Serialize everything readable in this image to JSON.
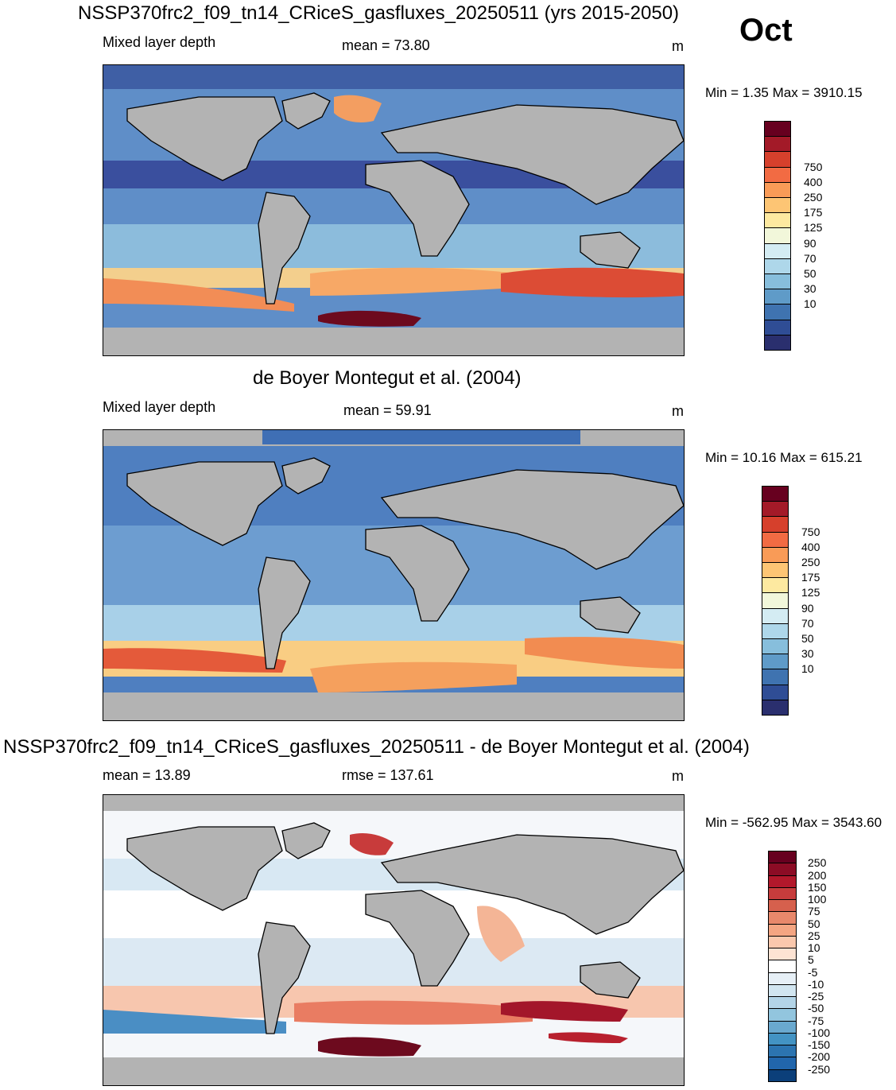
{
  "month": "Oct",
  "panels": [
    {
      "title": "NSSP370frc2_f09_tn14_CRiceS_gasfluxes_20250511 (yrs 2015-2050)",
      "left_label": "Mixed layer depth",
      "center_label": "mean =  73.80",
      "units": "m",
      "minmax": "Min =   1.35 Max = 3910.15",
      "colorbar": {
        "labels": [
          "750",
          "400",
          "250",
          "175",
          "125",
          "90",
          "70",
          "50",
          "30",
          "10"
        ],
        "colors": [
          "#67001f",
          "#a31a28",
          "#d6402c",
          "#f26b43",
          "#f99b57",
          "#fdc574",
          "#fde9a0",
          "#f2f7da",
          "#d4ecf3",
          "#aed7ea",
          "#87bedc",
          "#5f9bc8",
          "#3f73b0",
          "#2f4d95",
          "#2a2f6e"
        ]
      }
    },
    {
      "title": "de Boyer Montegut et al. (2004)",
      "left_label": "Mixed layer depth",
      "center_label": "mean =  59.91",
      "units": "m",
      "minmax": "Min =  10.16 Max = 615.21",
      "colorbar": {
        "labels": [
          "750",
          "400",
          "250",
          "175",
          "125",
          "90",
          "70",
          "50",
          "30",
          "10"
        ],
        "colors": [
          "#67001f",
          "#a31a28",
          "#d6402c",
          "#f26b43",
          "#f99b57",
          "#fdc574",
          "#fde9a0",
          "#f2f7da",
          "#d4ecf3",
          "#aed7ea",
          "#87bedc",
          "#5f9bc8",
          "#3f73b0",
          "#2f4d95",
          "#2a2f6e"
        ]
      }
    },
    {
      "title": "NSSP370frc2_f09_tn14_CRiceS_gasfluxes_20250511 - de Boyer Montegut et al. (2004)",
      "left_label": "mean =  13.89",
      "center_label": "rmse = 137.61",
      "units": "m",
      "minmax": "Min = -562.95 Max = 3543.60",
      "colorbar": {
        "labels": [
          "250",
          "200",
          "150",
          "100",
          "75",
          "50",
          "25",
          "10",
          "5",
          "-5",
          "-10",
          "-25",
          "-50",
          "-75",
          "-100",
          "-150",
          "-200",
          "-250"
        ],
        "colors": [
          "#67001f",
          "#8c0c25",
          "#b2182b",
          "#c73c3c",
          "#d6604d",
          "#e8886b",
          "#f4a582",
          "#fac8ad",
          "#fde3d3",
          "#ffffff",
          "#e6eff6",
          "#d1e5f0",
          "#b3d4e7",
          "#92c5de",
          "#6aa9cf",
          "#4393c3",
          "#2c74b0",
          "#2166ac",
          "#0b3f7a"
        ]
      }
    }
  ]
}
